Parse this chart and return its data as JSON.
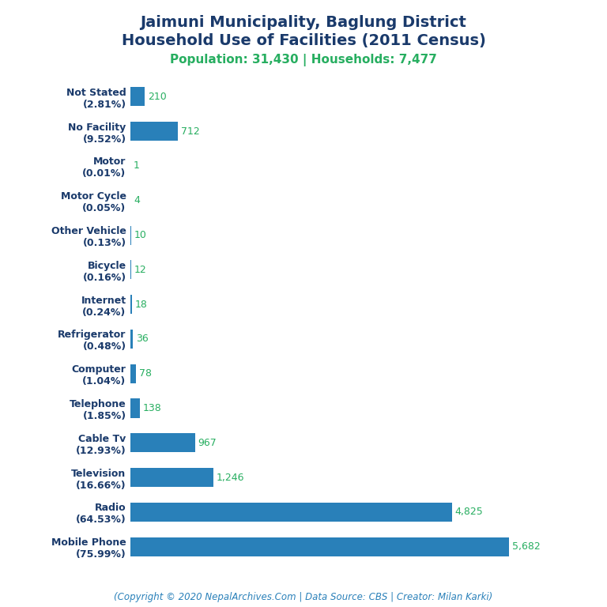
{
  "title_line1": "Jaimuni Municipality, Baglung District",
  "title_line2": "Household Use of Facilities (2011 Census)",
  "subtitle": "Population: 31,430 | Households: 7,477",
  "footer": "(Copyright © 2020 NepalArchives.Com | Data Source: CBS | Creator: Milan Karki)",
  "categories": [
    "Not Stated\n(2.81%)",
    "No Facility\n(9.52%)",
    "Motor\n(0.01%)",
    "Motor Cycle\n(0.05%)",
    "Other Vehicle\n(0.13%)",
    "Bicycle\n(0.16%)",
    "Internet\n(0.24%)",
    "Refrigerator\n(0.48%)",
    "Computer\n(1.04%)",
    "Telephone\n(1.85%)",
    "Cable Tv\n(12.93%)",
    "Television\n(16.66%)",
    "Radio\n(64.53%)",
    "Mobile Phone\n(75.99%)"
  ],
  "values": [
    210,
    712,
    1,
    4,
    10,
    12,
    18,
    36,
    78,
    138,
    967,
    1246,
    4825,
    5682
  ],
  "bar_color": "#2980b9",
  "value_color": "#27ae60",
  "title_color": "#1a3a6b",
  "subtitle_color": "#27ae60",
  "footer_color": "#2980b9",
  "background_color": "#ffffff",
  "title_fontsize": 14,
  "subtitle_fontsize": 11,
  "value_fontsize": 9,
  "label_fontsize": 9,
  "footer_fontsize": 8.5
}
